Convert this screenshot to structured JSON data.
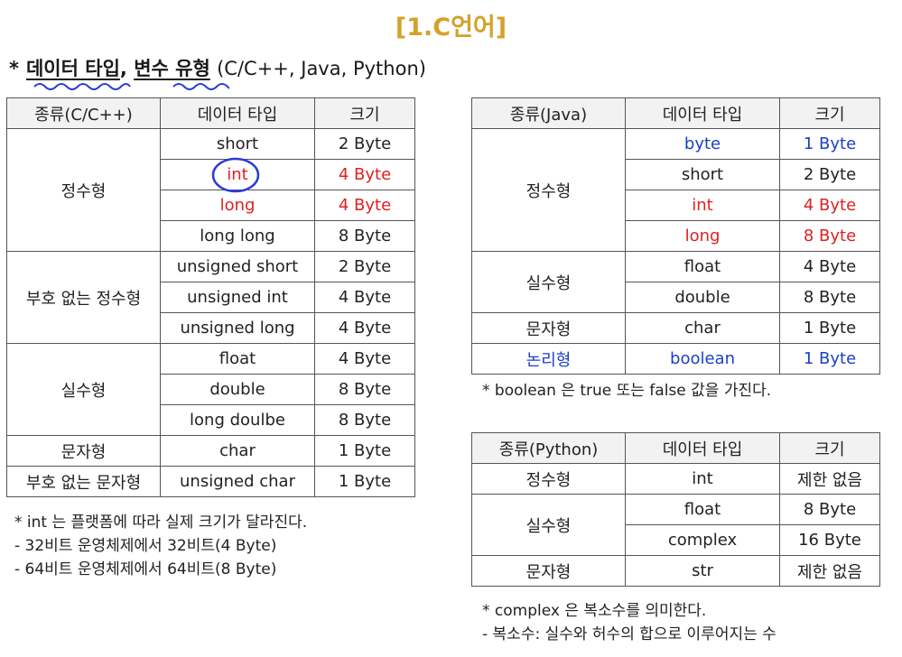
{
  "title": "[1.C언어]",
  "heading": {
    "star": "*",
    "part1": "데이터 타입",
    "comma": ",",
    "part2": "변수 유형",
    "rest": "(C/C++, Java, Python)"
  },
  "c_table": {
    "headers": [
      "종류(C/C++)",
      "데이터 타입",
      "크기"
    ],
    "groups": {
      "integer": "정수형",
      "unsigned_integer": "부호 없는 정수형",
      "real": "실수형",
      "char": "문자형",
      "unsigned_char": "부호 없는 문자형"
    },
    "rows": [
      {
        "type": "short",
        "size": "2 Byte"
      },
      {
        "type": "int",
        "size": "4 Byte"
      },
      {
        "type": "long",
        "size": "4 Byte"
      },
      {
        "type": "long long",
        "size": "8 Byte"
      },
      {
        "type": "unsigned short",
        "size": "2 Byte"
      },
      {
        "type": "unsigned int",
        "size": "4 Byte"
      },
      {
        "type": "unsigned long",
        "size": "4 Byte"
      },
      {
        "type": "float",
        "size": "4 Byte"
      },
      {
        "type": "double",
        "size": "8 Byte"
      },
      {
        "type": "long doulbe",
        "size": "8 Byte"
      },
      {
        "type": "char",
        "size": "1 Byte"
      },
      {
        "type": "unsigned char",
        "size": "1 Byte"
      }
    ]
  },
  "c_note": [
    "* int 는 플랫폼에 따라 실제 크기가 달라진다.",
    "- 32비트 운영체제에서 32비트(4 Byte)",
    "- 64비트 운영체제에서 64비트(8 Byte)"
  ],
  "java_table": {
    "headers": [
      "종류(Java)",
      "데이터 타입",
      "크기"
    ],
    "groups": {
      "integer": "정수형",
      "real": "실수형",
      "char": "문자형",
      "logical": "논리형"
    },
    "rows": [
      {
        "type": "byte",
        "size": "1 Byte"
      },
      {
        "type": "short",
        "size": "2 Byte"
      },
      {
        "type": "int",
        "size": "4 Byte"
      },
      {
        "type": "long",
        "size": "8 Byte"
      },
      {
        "type": "float",
        "size": "4 Byte"
      },
      {
        "type": "double",
        "size": "8 Byte"
      },
      {
        "type": "char",
        "size": "1 Byte"
      },
      {
        "type": "boolean",
        "size": "1 Byte"
      }
    ]
  },
  "java_note": "* boolean 은 true 또는 false 값을 가진다.",
  "python_table": {
    "headers": [
      "종류(Python)",
      "데이터 타입",
      "크기"
    ],
    "groups": {
      "integer": "정수형",
      "real": "실수형",
      "string": "문자형"
    },
    "rows": [
      {
        "type": "int",
        "size": "제한 없음"
      },
      {
        "type": "float",
        "size": "8 Byte"
      },
      {
        "type": "complex",
        "size": "16 Byte"
      },
      {
        "type": "str",
        "size": "제한 없음"
      }
    ]
  },
  "python_note": [
    "* complex 은 복소수를 의미한다.",
    "- 복소수: 실수와 허수의 합으로 이루어지는 수"
  ],
  "colors": {
    "title": "#d4a12a",
    "highlight_red": "#e02020",
    "highlight_blue": "#1c3fc4",
    "annotation_blue": "#2a3bd8"
  }
}
